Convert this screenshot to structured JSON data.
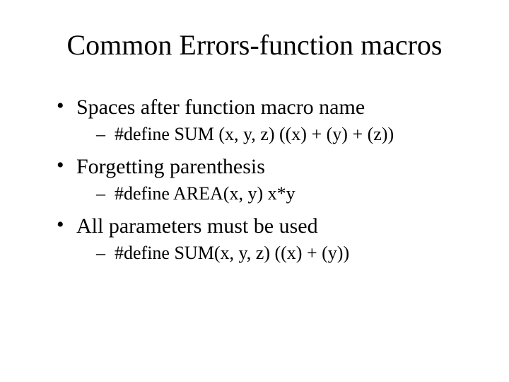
{
  "title": "Common Errors-function macros",
  "bullets": [
    {
      "text": "Spaces after function macro name",
      "sub": [
        "#define SUM (x, y, z) ((x) + (y) + (z))"
      ]
    },
    {
      "text": "Forgetting parenthesis",
      "sub": [
        "#define AREA(x, y) x*y"
      ]
    },
    {
      "text": "All parameters must be used",
      "sub": [
        "#define SUM(x, y, z) ((x) + (y))"
      ]
    }
  ]
}
